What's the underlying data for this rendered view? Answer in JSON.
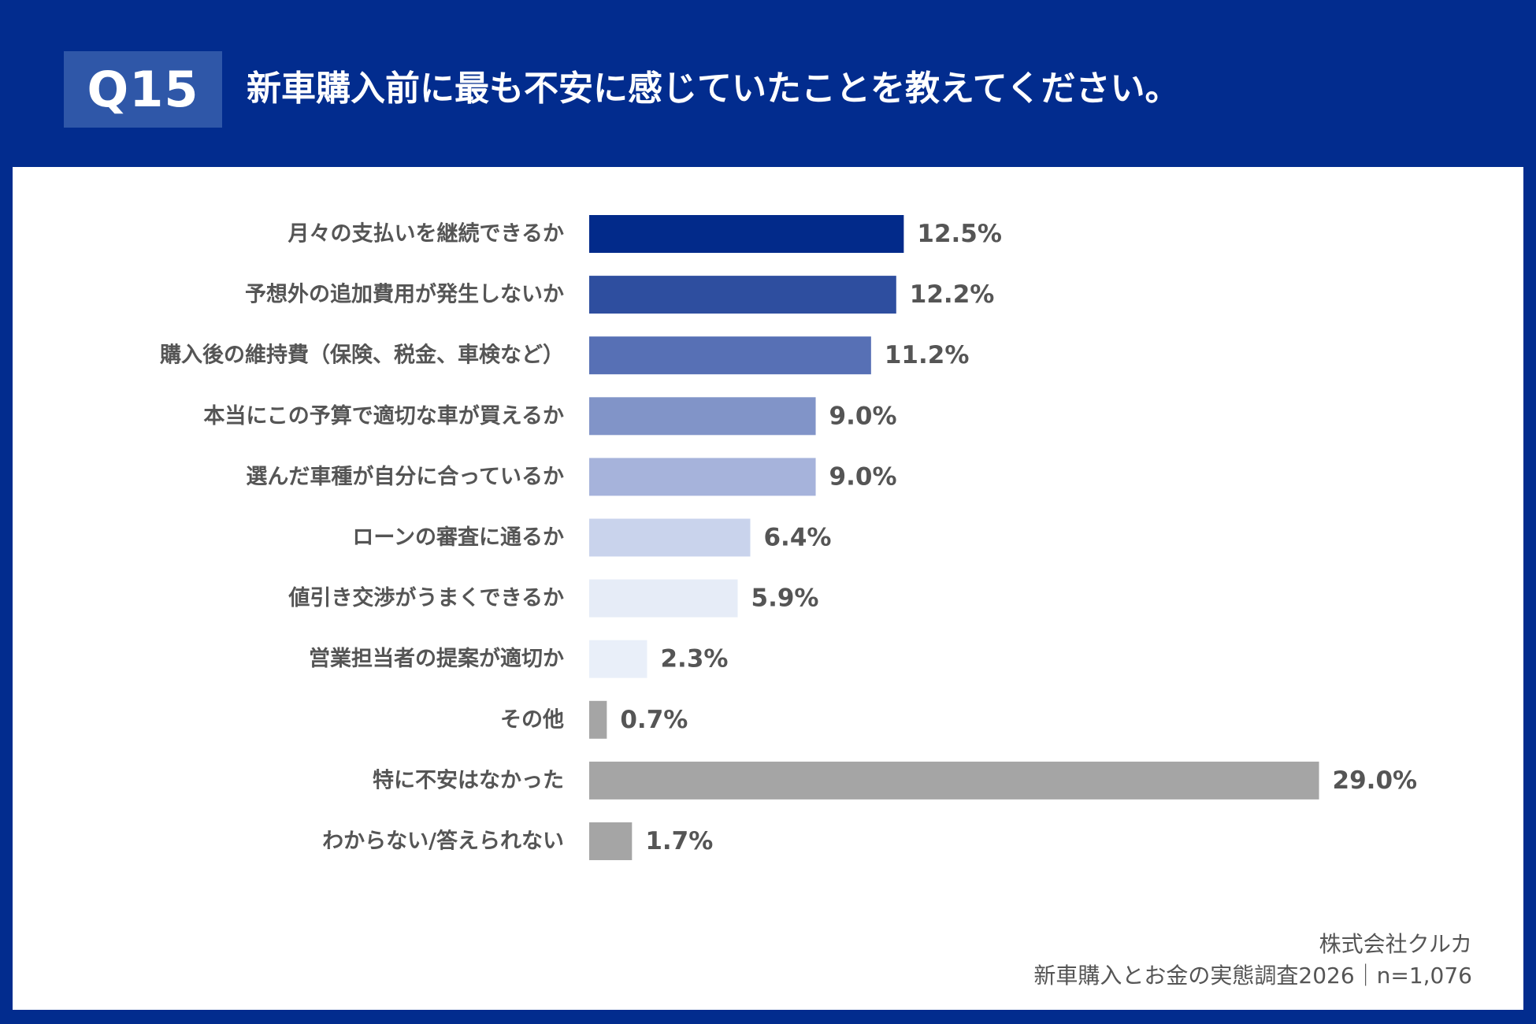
{
  "header": {
    "question_no": "Q15",
    "title": "新車購入前に最も不安に感じていたことを教えてください。"
  },
  "chart_data": {
    "type": "bar",
    "orientation": "horizontal",
    "categories": [
      "月々の支払いを継続できるか",
      "予想外の追加費用が発生しないか",
      "購入後の維持費（保険、税金、車検など）",
      "本当にこの予算で適切な車が買えるか",
      "選んだ車種が自分に合っているか",
      "ローンの審査に通るか",
      "値引き交渉がうまくできるか",
      "営業担当者の提案が適切か",
      "その他",
      "特に不安はなかった",
      "わからない/答えられない"
    ],
    "values": [
      12.5,
      12.2,
      11.2,
      9.0,
      9.0,
      6.4,
      5.9,
      2.3,
      0.7,
      29.0,
      1.7
    ],
    "value_labels": [
      "12.5%",
      "12.2%",
      "11.2%",
      "9.0%",
      "9.0%",
      "6.4%",
      "5.9%",
      "2.3%",
      "0.7%",
      "29.0%",
      "1.7%"
    ],
    "unit": "%",
    "colors": [
      "#022a8a",
      "#2e4e9f",
      "#5770b5",
      "#8194c8",
      "#a6b3db",
      "#c9d3ec",
      "#e6ecf7",
      "#e9eff9",
      "#a5a5a5",
      "#a5a5a5",
      "#a5a5a5"
    ],
    "grid": false,
    "legend": "none"
  },
  "footer": {
    "company": "株式会社クルカ",
    "survey": "新車購入とお金の実態調査2026｜n=1,076"
  }
}
